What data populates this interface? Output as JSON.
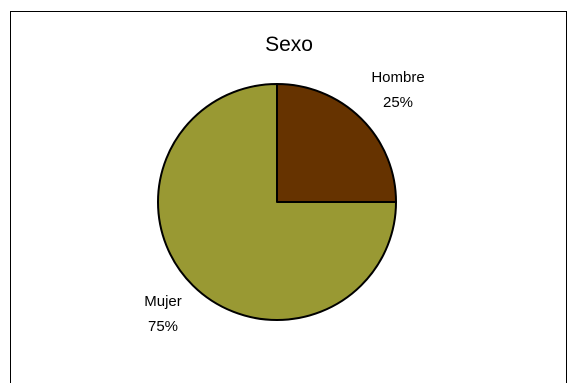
{
  "chart_data": {
    "type": "pie",
    "title": "Sexo",
    "slices": [
      {
        "label": "Hombre",
        "value": 25,
        "value_label": "25%",
        "color": "#663300"
      },
      {
        "label": "Mujer",
        "value": 75,
        "value_label": "75%",
        "color": "#999933"
      }
    ],
    "legend": "none"
  }
}
